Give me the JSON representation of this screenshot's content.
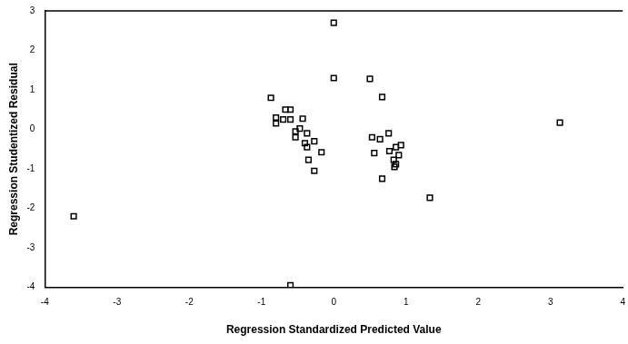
{
  "chart_data": {
    "type": "scatter",
    "x_label": "Regression Standardized Predicted Value",
    "y_label": "Regression Studentized Residual",
    "x": [
      -3.6,
      0.0,
      0.0,
      -0.87,
      -0.67,
      -0.6,
      -0.8,
      -0.8,
      -0.7,
      -0.6,
      -0.43,
      -0.53,
      -0.47,
      -0.37,
      -0.53,
      -0.4,
      -0.37,
      -0.27,
      -0.17,
      -0.35,
      -0.27,
      -0.6,
      0.5,
      0.67,
      0.53,
      0.64,
      0.76,
      0.56,
      0.86,
      0.77,
      0.93,
      0.9,
      0.83,
      0.86,
      0.84,
      0.67,
      1.33,
      3.13
    ],
    "values": [
      -2.2,
      2.7,
      1.3,
      0.8,
      0.5,
      0.5,
      0.3,
      0.15,
      0.25,
      0.25,
      0.27,
      -0.05,
      0.02,
      -0.1,
      -0.2,
      -0.35,
      -0.45,
      -0.3,
      -0.58,
      -0.77,
      -1.05,
      -3.95,
      1.28,
      0.82,
      -0.2,
      -0.25,
      -0.1,
      -0.6,
      -0.45,
      -0.55,
      -0.4,
      -0.65,
      -0.77,
      -0.88,
      -0.95,
      -1.25,
      -1.73,
      0.17
    ],
    "color": "#000000",
    "marker": "square",
    "xlim": [
      -4,
      4
    ],
    "xticks": [
      -4,
      -3,
      -2,
      -1,
      0,
      1,
      2,
      3,
      4
    ],
    "ylim": [
      -4,
      3
    ],
    "yticks": [
      -4,
      -3,
      -2,
      -1,
      0,
      1,
      2,
      3
    ],
    "grid": false
  }
}
